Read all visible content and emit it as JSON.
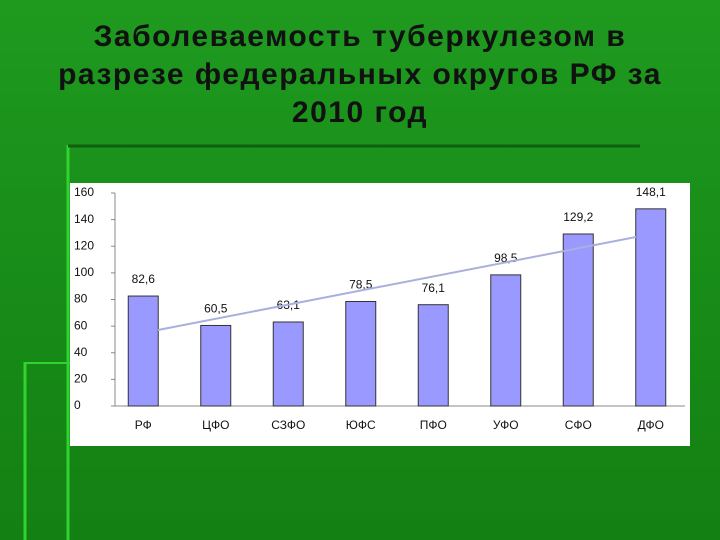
{
  "chart_data": {
    "type": "bar",
    "title": "Заболеваемость туберкулезом в разрезе федеральных округов РФ за 2010 год",
    "categories": [
      "РФ",
      "ЦФО",
      "СЗФО",
      "ЮФС",
      "ПФО",
      "УФО",
      "СФО",
      "ДФО"
    ],
    "values": [
      82.6,
      60.5,
      63.1,
      78.5,
      76.1,
      98.5,
      129.2,
      148.1
    ],
    "value_labels": [
      "82,6",
      "60,5",
      "63,1",
      "78,5",
      "76,1",
      "98,5",
      "129,2",
      "148,1"
    ],
    "color": "#9999ff",
    "ylim": [
      0,
      160
    ],
    "yticks": [
      0,
      20,
      40,
      60,
      80,
      100,
      120,
      140,
      160
    ]
  }
}
